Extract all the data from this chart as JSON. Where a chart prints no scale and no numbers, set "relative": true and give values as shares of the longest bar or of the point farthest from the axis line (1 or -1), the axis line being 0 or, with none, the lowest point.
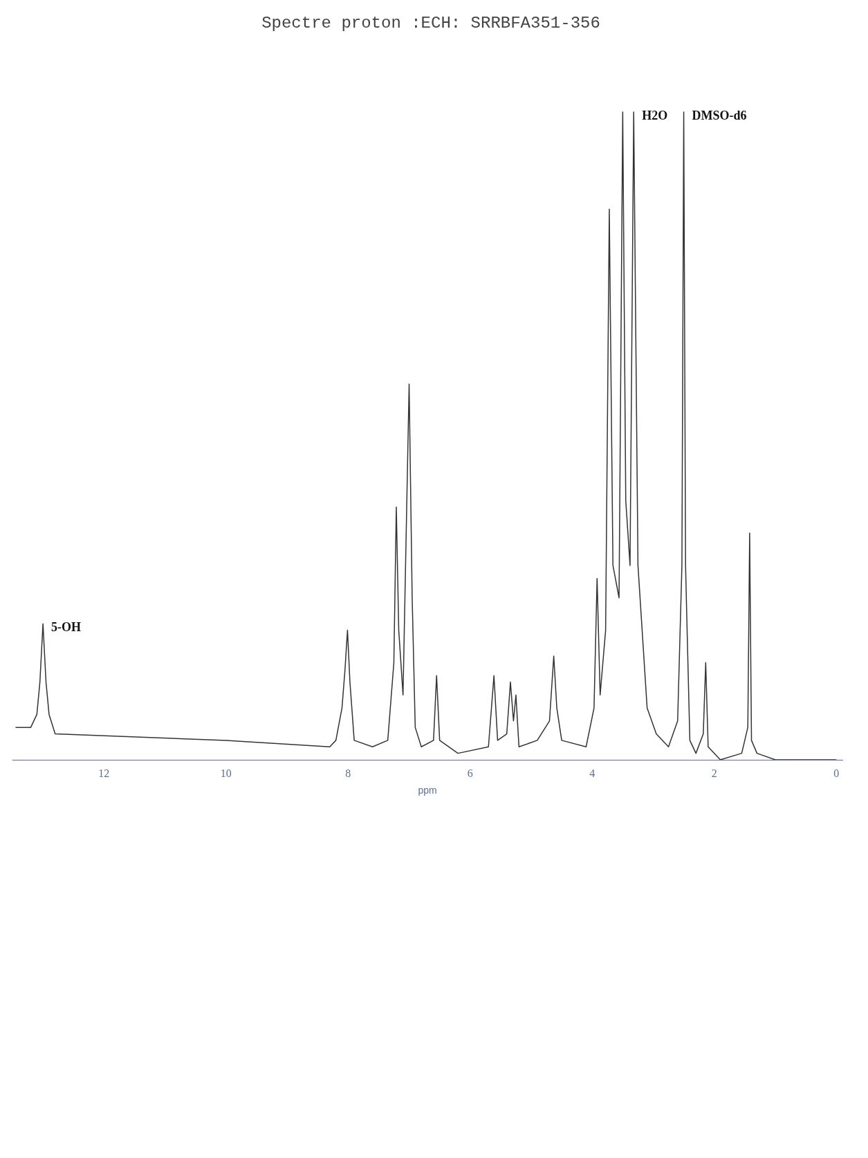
{
  "chart_data": {
    "type": "line",
    "title": "Spectre proton :ECH: SRRBFA351-356",
    "xlabel": "ppm",
    "relative": true,
    "xlim": [
      13.5,
      -0.1
    ],
    "xticks": [
      0,
      2,
      4,
      6,
      8,
      10,
      12
    ],
    "grid": false,
    "legend": false,
    "x": [
      13.45,
      13.2,
      13.1,
      13.05,
      13.0,
      12.95,
      12.9,
      12.8,
      10.0,
      8.3,
      8.2,
      8.1,
      8.05,
      8.01,
      7.97,
      7.9,
      7.6,
      7.35,
      7.25,
      7.21,
      7.17,
      7.1,
      7.0,
      6.95,
      6.9,
      6.8,
      6.6,
      6.55,
      6.5,
      6.2,
      5.7,
      5.61,
      5.55,
      5.4,
      5.34,
      5.29,
      5.25,
      5.2,
      4.9,
      4.7,
      4.63,
      4.58,
      4.5,
      4.1,
      3.97,
      3.92,
      3.87,
      3.78,
      3.72,
      3.66,
      3.56,
      3.5,
      3.45,
      3.38,
      3.32,
      3.25,
      3.1,
      2.95,
      2.75,
      2.6,
      2.53,
      2.5,
      2.47,
      2.45,
      2.4,
      2.3,
      2.18,
      2.14,
      2.1,
      1.9,
      1.55,
      1.45,
      1.42,
      1.39,
      1.3,
      1.0,
      0.5,
      0.0
    ],
    "values": [
      0.05,
      0.05,
      0.07,
      0.12,
      0.21,
      0.12,
      0.07,
      0.04,
      0.03,
      0.02,
      0.03,
      0.08,
      0.14,
      0.2,
      0.12,
      0.03,
      0.02,
      0.03,
      0.15,
      0.39,
      0.2,
      0.1,
      0.58,
      0.25,
      0.05,
      0.02,
      0.03,
      0.13,
      0.03,
      0.01,
      0.02,
      0.13,
      0.03,
      0.04,
      0.12,
      0.06,
      0.1,
      0.02,
      0.03,
      0.06,
      0.16,
      0.08,
      0.03,
      0.02,
      0.08,
      0.28,
      0.1,
      0.2,
      0.85,
      0.3,
      0.25,
      1.0,
      0.4,
      0.3,
      1.0,
      0.3,
      0.08,
      0.04,
      0.02,
      0.06,
      0.3,
      1.0,
      0.3,
      0.22,
      0.03,
      0.01,
      0.04,
      0.15,
      0.02,
      0.0,
      0.01,
      0.05,
      0.35,
      0.03,
      0.01,
      0.0,
      0.0,
      0.0
    ],
    "color": "#333333",
    "annotations": [
      {
        "text": "5-OH",
        "x": 13.0,
        "y": 0.21
      },
      {
        "text": "H2O",
        "x": 3.32,
        "y": 1.0
      },
      {
        "text": "DMSO-d6",
        "x": 2.5,
        "y": 1.0
      }
    ]
  }
}
